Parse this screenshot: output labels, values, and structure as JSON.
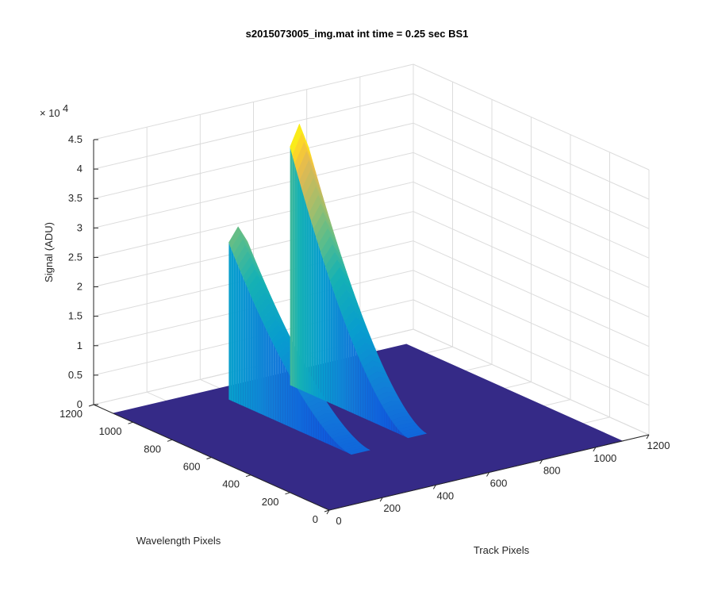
{
  "chart_data": {
    "type": "surface",
    "title": "s2015073005_img.mat int time = 0.25 sec   BS1",
    "xlabel": "Track Pixels",
    "ylabel": "Wavelength Pixels",
    "zlabel": "Signal (ADU)",
    "exponent_label": "× 10",
    "exponent_power": "4",
    "xlim": [
      0,
      1200
    ],
    "ylim": [
      0,
      1200
    ],
    "zlim": [
      0,
      45000
    ],
    "x_ticks": [
      "0",
      "200",
      "400",
      "600",
      "800",
      "1000",
      "1200"
    ],
    "y_ticks": [
      "0",
      "200",
      "400",
      "600",
      "800",
      "1000",
      "1200"
    ],
    "z_ticks": [
      "0",
      "0.5",
      "1",
      "1.5",
      "2",
      "2.5",
      "3",
      "3.5",
      "4",
      "4.5"
    ],
    "colormap": "parula",
    "grid": true,
    "surface_extent": {
      "x": [
        0,
        1100
      ],
      "y": [
        0,
        1100
      ]
    },
    "series": [
      {
        "x_start": 360,
        "x_end": 430,
        "peak_y": 1000,
        "peak_value": 29000,
        "tail_y": 380
      },
      {
        "x_start": 590,
        "x_end": 660,
        "peak_y": 1000,
        "peak_value": 44000,
        "tail_y": 400
      }
    ]
  }
}
